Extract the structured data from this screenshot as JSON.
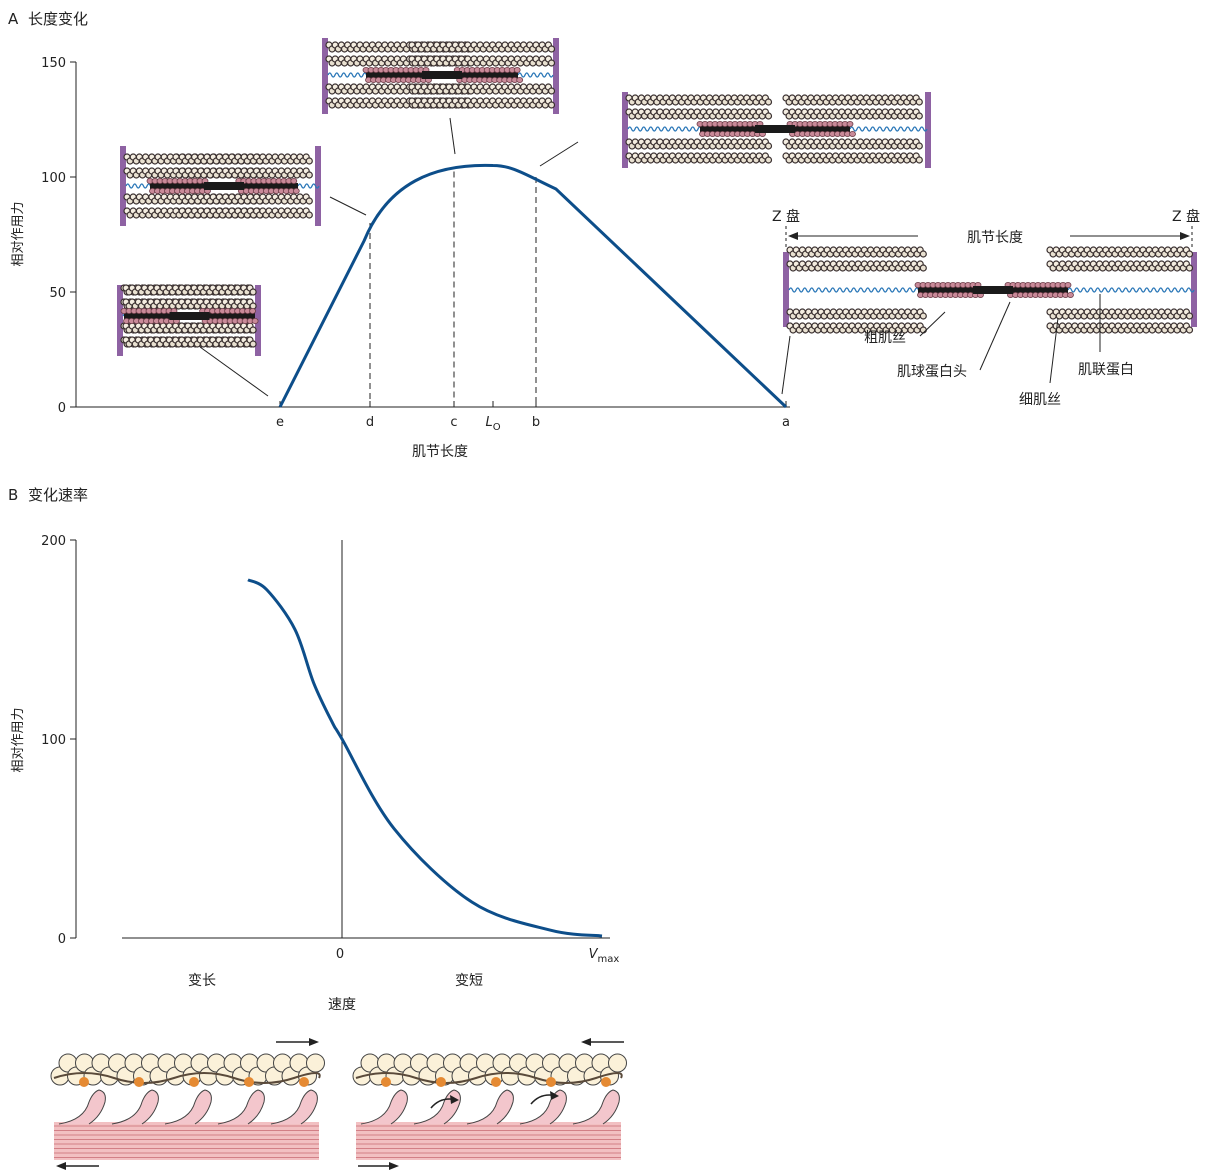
{
  "panel_a": {
    "letter": "A",
    "title": "长度变化"
  },
  "panel_b": {
    "letter": "B",
    "title": "变化速率"
  },
  "chart_data": [
    {
      "type": "line",
      "title": "长度变化",
      "xlabel": "肌节长度",
      "ylabel": "相对作用力",
      "ylim": [
        0,
        150
      ],
      "yticks": [
        "0",
        "50",
        "100",
        "150"
      ],
      "xticks": [
        {
          "key": "e",
          "label": "e"
        },
        {
          "key": "d",
          "label": "d"
        },
        {
          "key": "c",
          "label": "c"
        },
        {
          "key": "lo",
          "label": "L",
          "sub": "O"
        },
        {
          "key": "b",
          "label": "b"
        },
        {
          "key": "a",
          "label": "a"
        }
      ],
      "series": [
        {
          "x": [
            "e",
            "d",
            "c",
            "lo",
            "b",
            "a"
          ],
          "y": [
            0,
            80,
            105,
            105,
            100,
            0
          ]
        }
      ],
      "color": "#0d4e8a"
    },
    {
      "type": "line",
      "title": "变化速率",
      "xlabel": "速度",
      "ylabel": "相对作用力",
      "ylim": [
        0,
        200
      ],
      "yticks": [
        "0",
        "100",
        "200"
      ],
      "xticks": [
        {
          "key": "zero",
          "label": "0"
        },
        {
          "key": "vmax",
          "label": "V",
          "sub": "max"
        }
      ],
      "region_labels": {
        "left": "变长",
        "right": "变短"
      },
      "series": [
        {
          "x": [
            -1,
            -0.8,
            -0.5,
            -0.3,
            -0.1,
            0,
            0.2,
            0.5,
            0.8,
            1
          ],
          "y": [
            180,
            175,
            155,
            128,
            108,
            100,
            55,
            18,
            4,
            1
          ]
        }
      ],
      "color": "#0d4e8a"
    }
  ],
  "sarcomere_labels": {
    "z_disk_left": "Z 盘",
    "z_disk_right": "Z 盘",
    "length": "肌节长度",
    "thick": "粗肌丝",
    "myosin_head": "肌球蛋白头",
    "titin": "肌联蛋白",
    "thin": "细肌丝"
  },
  "colors": {
    "curve": "#0d4e8a",
    "z_disk": "#8e62a3",
    "actin": "#3a3030",
    "myosin": "#1a1a1a",
    "myosin_head": "#c98a99",
    "titin": "#2c78b8"
  }
}
